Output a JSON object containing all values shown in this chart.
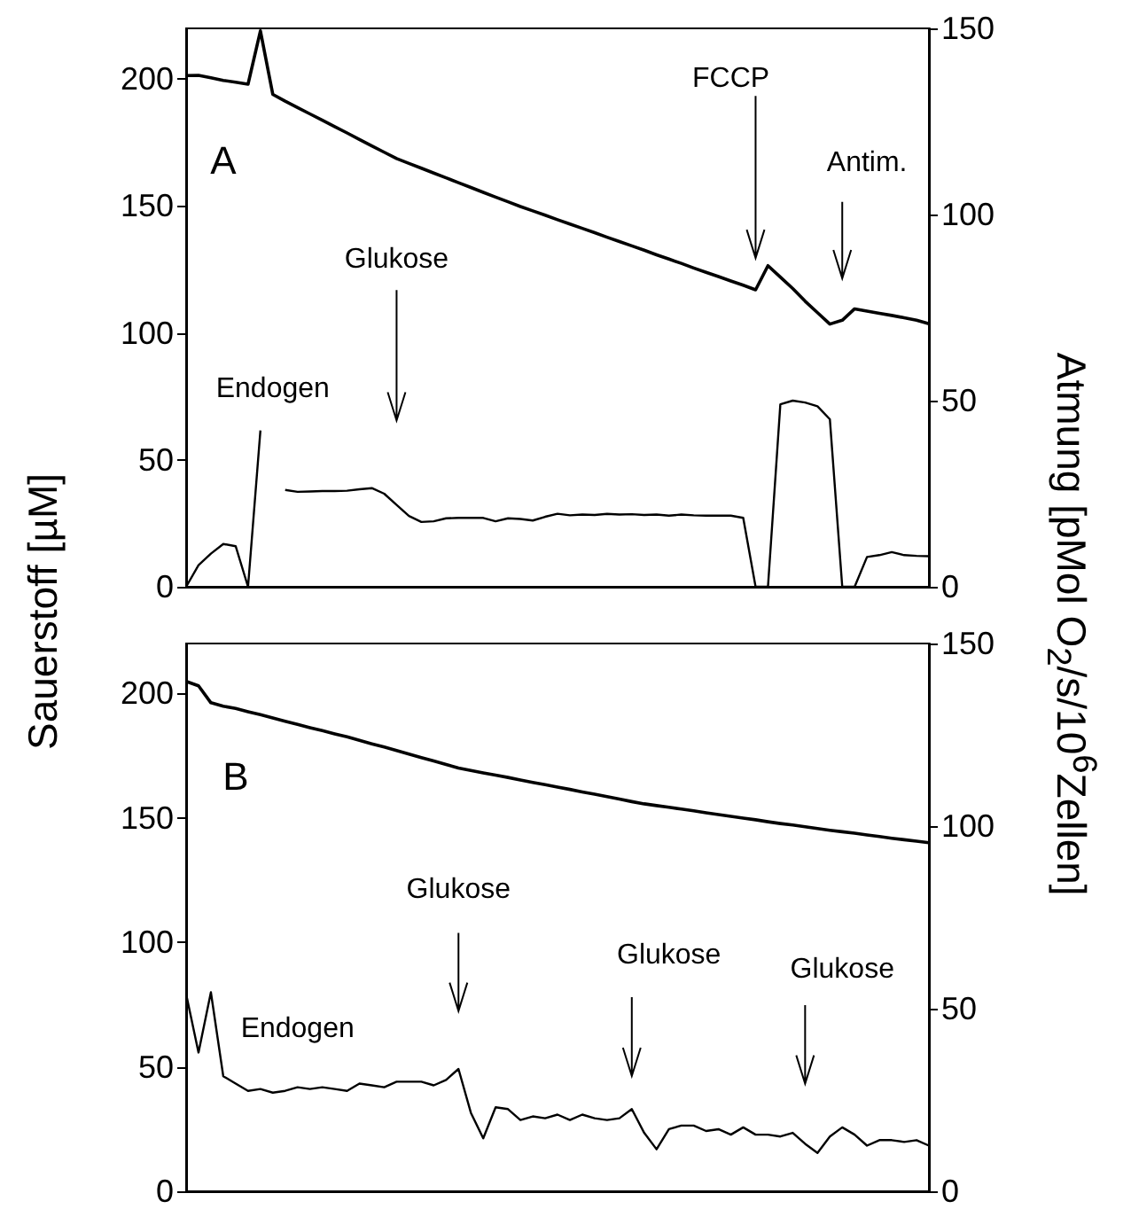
{
  "chart_data": [
    {
      "type": "line",
      "ylabel": "Sauerstoff [µM]",
      "y2label": "Atmung [pMol O$_{2}$/s/10$^{6}$Zellen]",
      "categories": [
        null,
        null,
        null,
        null,
        null,
        null,
        null,
        null,
        null,
        null,
        null,
        null,
        null,
        null,
        null,
        null,
        null,
        null,
        null,
        null,
        null,
        null,
        null,
        null,
        null,
        null,
        null,
        null,
        null,
        null,
        null,
        null,
        null,
        null,
        null,
        null,
        null,
        null,
        null,
        null,
        null,
        null,
        null,
        null,
        null,
        null,
        null,
        null,
        null,
        null,
        null,
        null,
        null,
        null,
        null,
        null,
        null,
        null,
        null,
        null,
        null
      ],
      "ylim": [
        0,
        220
      ],
      "yticks": [
        0,
        50,
        100,
        150,
        200
      ],
      "y2lim": [
        0,
        150
      ],
      "y2ticks": [
        0,
        50,
        100,
        150
      ],
      "grid": false,
      "marker": "none",
      "annotations": [
        "A",
        "Endogen",
        "Glukose",
        "FCCP",
        "Antim."
      ],
      "series": [
        {
          "color": "#000000",
          "values": [
            201.4,
            201.5,
            200.5,
            199.5,
            198.8,
            198,
            219,
            194,
            191.3,
            188.8,
            186.3,
            183.8,
            181.3,
            178.8,
            176.2,
            173.7,
            171.2,
            168.7,
            166.8,
            164.9,
            163,
            161.1,
            159.2,
            157.3,
            155.4,
            153.5,
            151.7,
            149.8,
            148.1,
            146.4,
            144.6,
            142.9,
            141.2,
            139.5,
            137.7,
            136,
            134.3,
            132.6,
            130.8,
            129.1,
            127.4,
            125.6,
            123.9,
            122.2,
            120.5,
            118.8,
            117,
            126.5,
            122,
            117.5,
            112.5,
            108,
            103.5,
            105,
            109.5,
            108.6,
            107.7,
            106.9,
            106,
            105,
            103.6
          ]
        },
        {
          "color": "#000000",
          "axis": "y2",
          "values": [
            0,
            5.8,
            8.9,
            11.5,
            10.9,
            0,
            42,
            null,
            26,
            25.5,
            25.6,
            25.7,
            25.7,
            25.8,
            26.2,
            26.5,
            25,
            22,
            19,
            17.4,
            17.6,
            18.4,
            18.5,
            18.5,
            18.5,
            17.6,
            18.4,
            18.2,
            17.8,
            18.8,
            19.6,
            19.2,
            19.4,
            19.3,
            19.6,
            19.4,
            19.5,
            19.3,
            19.4,
            19.1,
            19.4,
            19.2,
            19.1,
            19.1,
            19.1,
            18.5,
            0,
            0,
            49,
            50,
            49.5,
            48.5,
            45,
            0,
            0,
            8,
            8.5,
            9.3,
            8.5,
            8.3,
            8.2
          ]
        }
      ]
    },
    {
      "type": "line",
      "categories": [
        null,
        null,
        null,
        null,
        null,
        null,
        null,
        null,
        null,
        null,
        null,
        null,
        null,
        null,
        null,
        null,
        null,
        null,
        null,
        null,
        null,
        null,
        null,
        null,
        null,
        null,
        null,
        null,
        null,
        null,
        null,
        null,
        null,
        null,
        null,
        null,
        null,
        null,
        null,
        null,
        null,
        null,
        null,
        null,
        null,
        null,
        null,
        null,
        null,
        null,
        null,
        null,
        null,
        null,
        null,
        null,
        null,
        null,
        null,
        null,
        null
      ],
      "ylim": [
        0,
        220
      ],
      "yticks": [
        0,
        50,
        100,
        150,
        200
      ],
      "y2lim": [
        0,
        150
      ],
      "y2ticks": [
        0,
        50,
        100,
        150
      ],
      "grid": false,
      "marker": "none",
      "annotations": [
        "B",
        "Endogen",
        "Glukose",
        "Glukose",
        "Glukose"
      ],
      "series": [
        {
          "color": "#000000",
          "values": [
            204.8,
            203,
            196.2,
            194.8,
            193.9,
            192.6,
            191.4,
            190.1,
            188.8,
            187.5,
            186.2,
            185,
            183.7,
            182.5,
            181.1,
            179.7,
            178.4,
            177,
            175.6,
            174.2,
            172.8,
            171.4,
            170,
            169,
            168,
            167.1,
            166.2,
            165.2,
            164.2,
            163.3,
            162.3,
            161.4,
            160.4,
            159.5,
            158.5,
            157.5,
            156.5,
            155.6,
            154.9,
            154.2,
            153.5,
            152.8,
            152,
            151.3,
            150.6,
            149.9,
            149.2,
            148.4,
            147.7,
            147.1,
            146.4,
            145.7,
            145,
            144.4,
            143.8,
            143.1,
            142.5,
            141.8,
            141.2,
            140.6,
            140
          ]
        },
        {
          "color": "#000000",
          "axis": "y2",
          "values": [
            54,
            38,
            54.5,
            31.5,
            29.5,
            27.5,
            28,
            27,
            27.5,
            28.5,
            28,
            28.5,
            28,
            27.5,
            29.5,
            29,
            28.5,
            30,
            30,
            30,
            29,
            30.5,
            33.5,
            21.5,
            14.5,
            23,
            22.5,
            19.5,
            20.5,
            20,
            21,
            19.5,
            21,
            20,
            19.5,
            20,
            22.5,
            16,
            11.5,
            17,
            18,
            18,
            16.5,
            17,
            15.5,
            17.5,
            15.5,
            15.5,
            15,
            16,
            13,
            10.5,
            15,
            17.5,
            15.5,
            12.5,
            14,
            14,
            13.5,
            14,
            12.5
          ]
        }
      ]
    }
  ]
}
